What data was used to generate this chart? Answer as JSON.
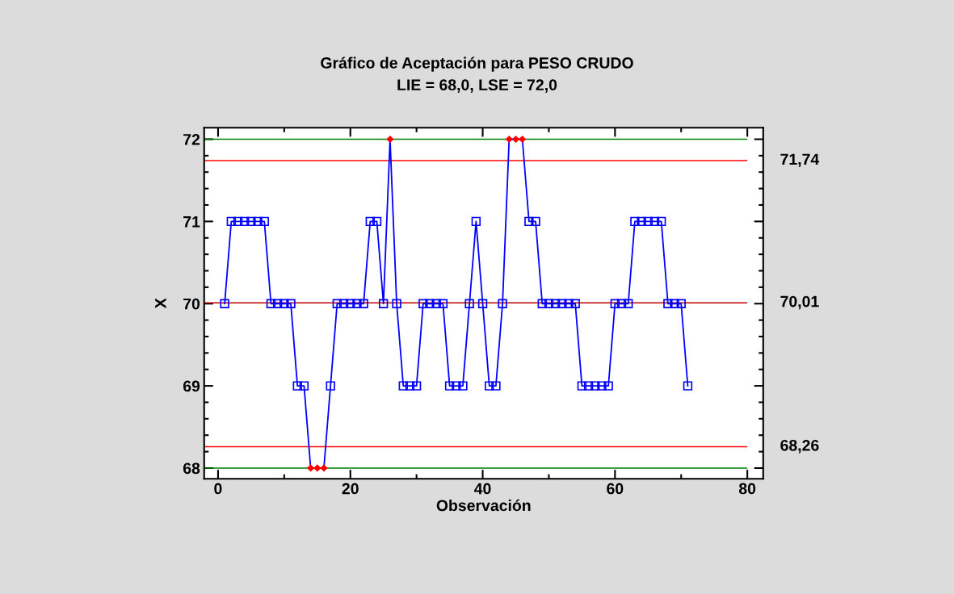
{
  "chart_data": {
    "type": "line",
    "title": "Gráfico de Aceptación para PESO CRUDO",
    "subtitle": "LIE = 68,0, LSE = 72,0",
    "xlabel": "Observación",
    "ylabel": "X",
    "x": [
      1,
      2,
      3,
      4,
      5,
      6,
      7,
      8,
      9,
      10,
      11,
      12,
      13,
      14,
      15,
      16,
      17,
      18,
      19,
      20,
      21,
      22,
      23,
      24,
      25,
      26,
      27,
      28,
      29,
      30,
      31,
      32,
      33,
      34,
      35,
      36,
      37,
      38,
      39,
      40,
      41,
      42,
      43,
      44,
      45,
      46,
      47,
      48,
      49,
      50,
      51,
      52,
      53,
      54,
      55,
      56,
      57,
      58,
      59,
      60,
      61,
      62,
      63,
      64,
      65,
      66,
      67,
      68,
      69,
      70,
      71
    ],
    "series": [
      {
        "color": "#0000ff",
        "values": [
          70,
          71,
          71,
          71,
          71,
          71,
          71,
          70,
          70,
          70,
          70,
          69,
          69,
          68,
          68,
          68,
          69,
          70,
          70,
          70,
          70,
          70,
          71,
          71,
          70,
          72,
          70,
          69,
          69,
          69,
          70,
          70,
          70,
          70,
          69,
          69,
          69,
          70,
          71,
          70,
          69,
          69,
          70,
          72,
          72,
          72,
          71,
          71,
          70,
          70,
          70,
          70,
          70,
          70,
          69,
          69,
          69,
          69,
          69,
          70,
          70,
          70,
          71,
          71,
          71,
          71,
          71,
          70,
          70,
          70,
          69
        ],
        "colors": [
          "#0000ff",
          "#0000ff",
          "#0000ff",
          "#0000ff",
          "#0000ff",
          "#0000ff",
          "#0000ff",
          "#0000ff",
          "#0000ff",
          "#0000ff",
          "#0000ff",
          "#0000ff",
          "#0000ff",
          "#ff0000",
          "#ff0000",
          "#ff0000",
          "#0000ff",
          "#0000ff",
          "#0000ff",
          "#0000ff",
          "#0000ff",
          "#0000ff",
          "#0000ff",
          "#0000ff",
          "#0000ff",
          "#ff0000",
          "#0000ff",
          "#0000ff",
          "#0000ff",
          "#0000ff",
          "#0000ff",
          "#0000ff",
          "#0000ff",
          "#0000ff",
          "#0000ff",
          "#0000ff",
          "#0000ff",
          "#0000ff",
          "#0000ff",
          "#0000ff",
          "#0000ff",
          "#0000ff",
          "#0000ff",
          "#ff0000",
          "#ff0000",
          "#ff0000",
          "#0000ff",
          "#0000ff",
          "#0000ff",
          "#0000ff",
          "#0000ff",
          "#0000ff",
          "#0000ff",
          "#0000ff",
          "#0000ff",
          "#0000ff",
          "#0000ff",
          "#0000ff",
          "#0000ff",
          "#0000ff",
          "#0000ff",
          "#0000ff",
          "#0000ff",
          "#0000ff",
          "#0000ff",
          "#0000ff",
          "#0000ff",
          "#0000ff",
          "#0000ff",
          "#0000ff",
          "#0000ff"
        ]
      }
    ],
    "xlim": [
      -2.1,
      82.4
    ],
    "ylim": [
      67.87,
      72.14
    ],
    "xticks": [
      0,
      {
        "value": 10,
        "label": null
      },
      20,
      {
        "value": 30,
        "label": null
      },
      40,
      {
        "value": 50,
        "label": null
      },
      60,
      {
        "value": 70,
        "label": null
      },
      80
    ],
    "yticks": [
      68,
      {
        "value": 68.2,
        "label": null
      },
      {
        "value": 68.4,
        "label": null
      },
      {
        "value": 68.6,
        "label": null
      },
      {
        "value": 68.8,
        "label": null
      },
      69,
      {
        "value": 69.2,
        "label": null
      },
      {
        "value": 69.4,
        "label": null
      },
      {
        "value": 69.6,
        "label": null
      },
      {
        "value": 69.8,
        "label": null
      },
      70,
      {
        "value": 70.2,
        "label": null
      },
      {
        "value": 70.4,
        "label": null
      },
      {
        "value": 70.6,
        "label": null
      },
      {
        "value": 70.8,
        "label": null
      },
      71,
      {
        "value": 71.2,
        "label": null
      },
      {
        "value": 71.4,
        "label": null
      },
      {
        "value": 71.6,
        "label": null
      },
      {
        "value": 71.8,
        "label": null
      },
      72
    ],
    "ref_lines": [
      {
        "axis": "y",
        "value": 72,
        "label": null,
        "color": "#008000"
      },
      {
        "axis": "y",
        "value": 71.74,
        "label": "71,74",
        "color": "#ff0000"
      },
      {
        "axis": "y",
        "value": 70.01,
        "label": "70,01",
        "color": "#c00000"
      },
      {
        "axis": "y",
        "value": 68.26,
        "label": "68,26",
        "color": "#ff0000"
      },
      {
        "axis": "y",
        "value": 68,
        "label": null,
        "color": "#008000"
      }
    ],
    "marker": "square",
    "line_style": "solid",
    "grid": false
  }
}
